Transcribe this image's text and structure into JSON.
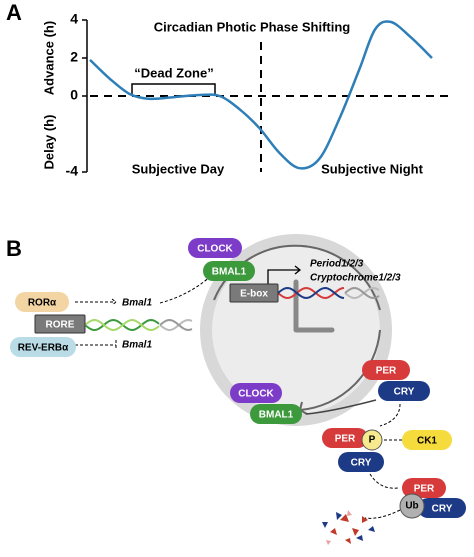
{
  "panel_labels": [
    "A",
    "B"
  ],
  "chart_data": {
    "type": "line",
    "title": "Circadian Photic Phase Shifting",
    "y_labels": [
      "Advance (h)",
      "Delay (h)"
    ],
    "x": [
      0,
      1.4,
      2.8,
      4.2,
      6.0,
      7.7,
      9.1,
      10.5,
      11.9,
      13.3,
      14.7,
      16.1,
      17.5,
      18.9,
      20.0,
      21.1,
      22.5,
      24
    ],
    "values": [
      1.9,
      0.9,
      0.1,
      -0.15,
      -0.05,
      0.05,
      0,
      -0.7,
      -1.7,
      -3.0,
      -3.8,
      -3.3,
      -1.2,
      1.4,
      3.5,
      3.9,
      3.1,
      2.0
    ],
    "color": "#2e7fb8",
    "xlim": [
      0,
      24
    ],
    "ylim": [
      -4,
      4
    ],
    "yticks": [
      -4,
      0,
      2,
      4
    ],
    "vline": 12,
    "annotations": [
      "“Dead Zone”",
      "Subjective Day",
      "Subjective Night"
    ]
  },
  "diagram": {
    "nodes": [
      {
        "label": "CLOCK"
      },
      {
        "label": "BMAL1"
      },
      {
        "label": "E-box"
      },
      {
        "label": "RORα"
      },
      {
        "label": "RORE"
      },
      {
        "label": "REV-ERBα"
      },
      {
        "label": "CLOCK"
      },
      {
        "label": "BMAL1"
      },
      {
        "label": "PER"
      },
      {
        "label": "CRY"
      },
      {
        "label": "PER"
      },
      {
        "label": "P"
      },
      {
        "label": "CRY"
      },
      {
        "label": "CK1"
      },
      {
        "label": "PER"
      },
      {
        "label": "CRY"
      },
      {
        "label": "Ub"
      }
    ],
    "genes": [
      "Period1/2/3",
      "Cryptochrome1/2/3",
      "Bmal1",
      "Bmal1"
    ]
  }
}
